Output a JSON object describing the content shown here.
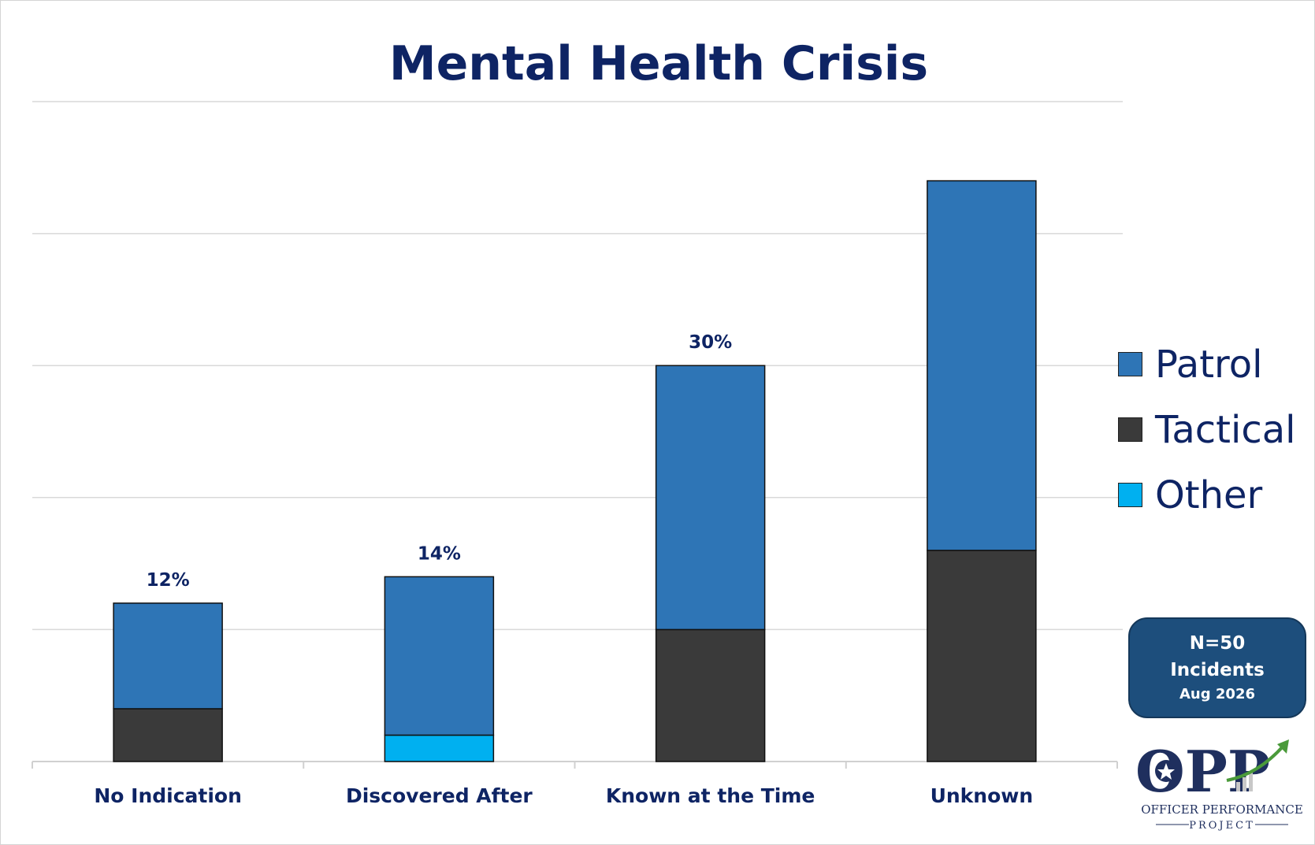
{
  "chart_data": {
    "type": "bar",
    "stacked": true,
    "title": "Mental Health Crisis",
    "categories": [
      "No Indication",
      "Discovered After",
      "Known at the Time",
      "Unknown"
    ],
    "series": [
      {
        "name": "Tactical",
        "color": "#3a3a3a",
        "values": [
          4,
          0,
          10,
          16
        ]
      },
      {
        "name": "Other",
        "color": "#00b0f0",
        "values": [
          0,
          2,
          0,
          0
        ]
      },
      {
        "name": "Patrol",
        "color": "#2e75b6",
        "values": [
          8,
          12,
          20,
          28
        ]
      }
    ],
    "data_labels": [
      "12%",
      "14%",
      "30%",
      ""
    ],
    "legend_order": [
      "Patrol",
      "Tactical",
      "Other"
    ],
    "ylim": [
      0,
      50
    ],
    "gridlines": [
      10,
      20,
      30,
      40,
      50
    ],
    "grid": true,
    "legend_position": "right",
    "xlabel": "",
    "ylabel": ""
  },
  "annotation": {
    "line1": "N=50",
    "line2": "Incidents",
    "line3": "Aug 2026"
  },
  "logo": {
    "letters": "OPP",
    "line1": "OFFICER PERFORMANCE",
    "line2": "PROJECT"
  },
  "colors": {
    "title": "#0e2464",
    "gridline": "#d9d9d9",
    "box": "#1d4e7c"
  }
}
